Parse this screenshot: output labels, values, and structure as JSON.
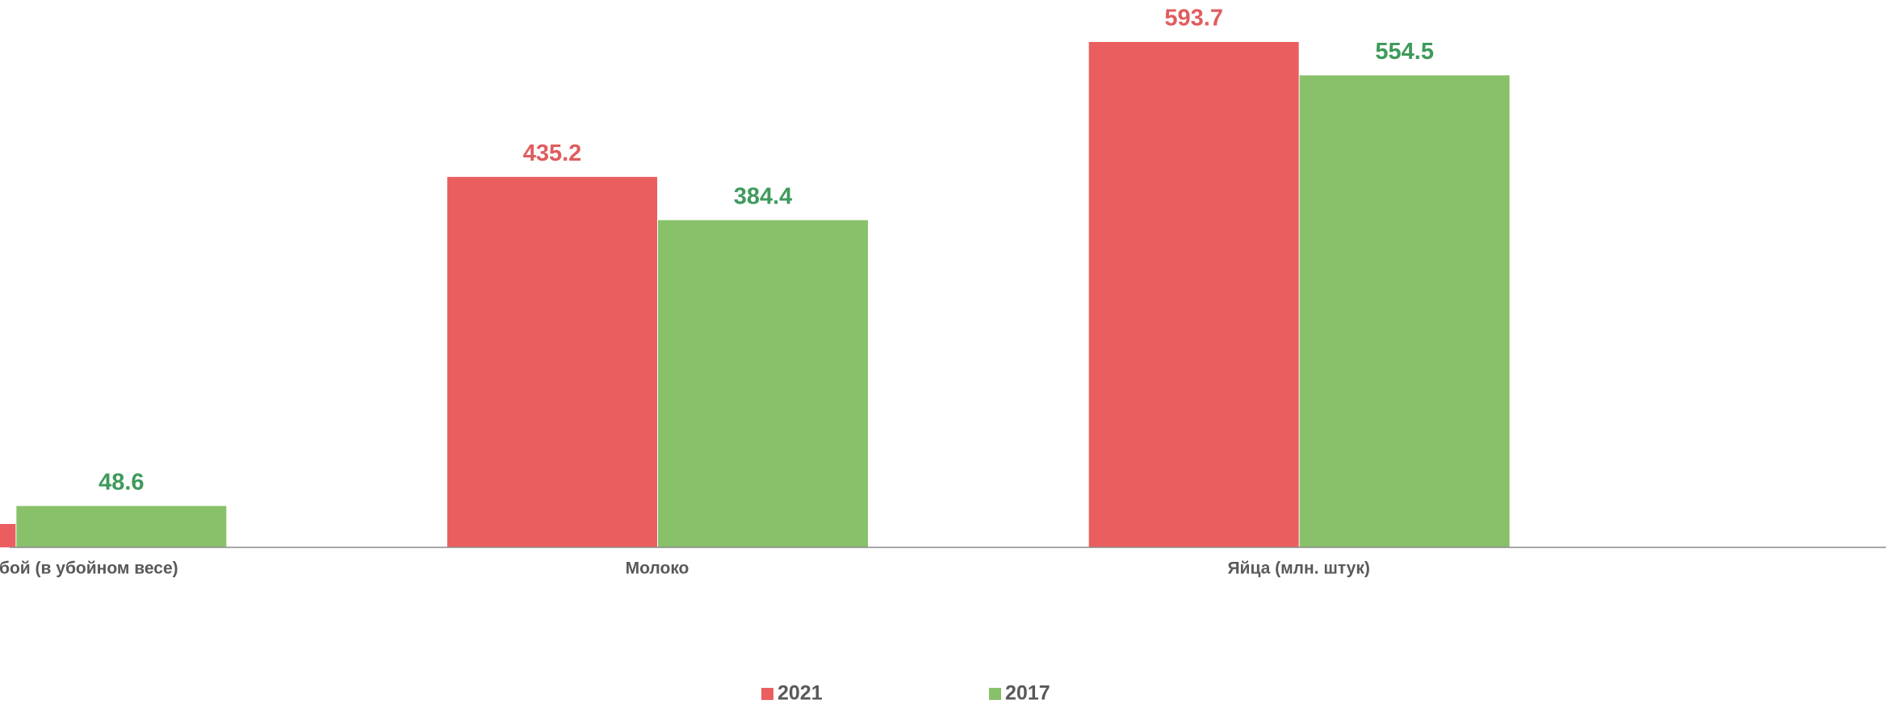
{
  "chart_data": {
    "type": "bar",
    "categories": [
      "Скот и птица на убой (в убойном весе)",
      "Молоко",
      "Яйца (млн. штук)"
    ],
    "series": [
      {
        "name": "2021",
        "color": "#eb5e60",
        "label_color": "#e05c5e",
        "values": [
          27.5,
          435.2,
          593.7
        ]
      },
      {
        "name": "2017",
        "color": "#88c16a",
        "label_color": "#3f9a5c",
        "values": [
          48.6,
          384.4,
          554.5
        ]
      }
    ],
    "legend": "bottom"
  }
}
